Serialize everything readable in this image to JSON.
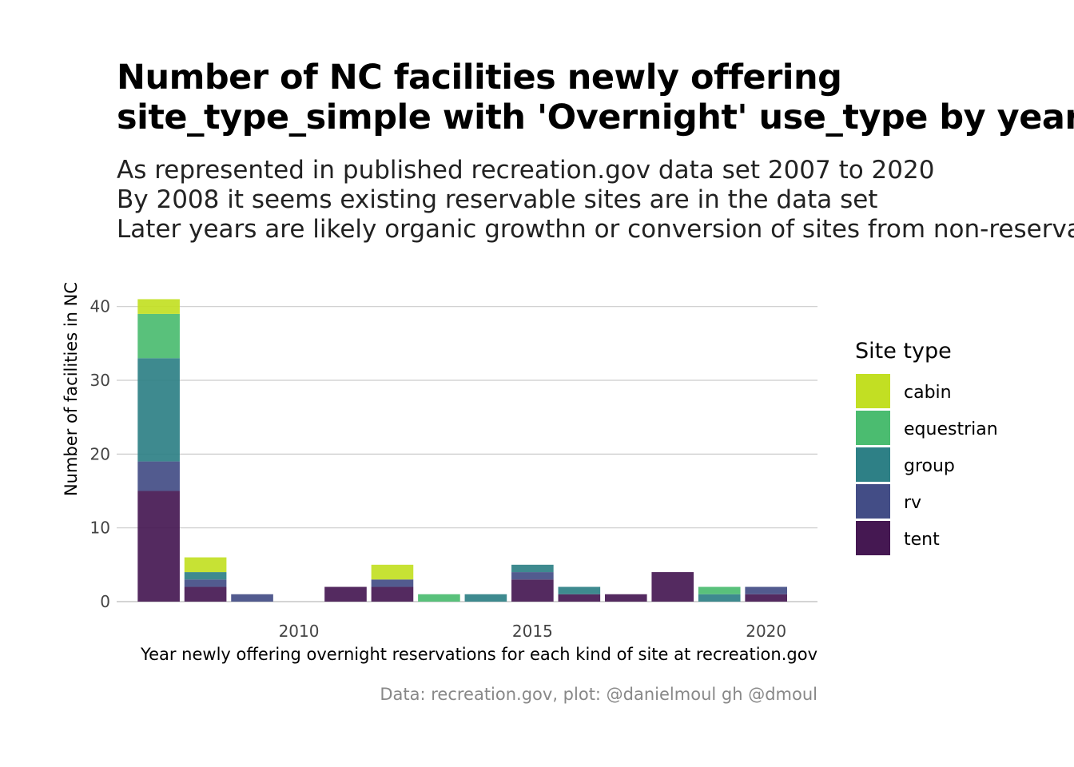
{
  "title_lines": [
    "Number of NC facilities newly offering",
    "site_type_simple with 'Overnight' use_type by year"
  ],
  "subtitle_lines": [
    "As represented in published recreation.gov data set 2007 to 2020",
    "By 2008 it seems existing reservable sites are in the data set",
    "Later years are likely organic growthn or conversion of sites from non-reservable"
  ],
  "caption": "Data: recreation.gov, plot: @danielmoul gh @dmoul",
  "colors": {
    "cabin": "#c2df23",
    "equestrian": "#4bbc70",
    "group": "#2e8086",
    "rv": "#434d86",
    "tent": "#451852",
    "grid": "#cccccc",
    "axis": "#bbbbbb"
  },
  "chart_data": {
    "type": "bar",
    "stacked": true,
    "x": [
      2007,
      2008,
      2009,
      2011,
      2012,
      2013,
      2014,
      2015,
      2016,
      2017,
      2018,
      2019,
      2020
    ],
    "series": [
      {
        "name": "tent",
        "values": [
          15,
          2,
          0,
          2,
          2,
          0,
          0,
          3,
          1,
          1,
          4,
          0,
          1
        ]
      },
      {
        "name": "rv",
        "values": [
          4,
          1,
          1,
          0,
          1,
          0,
          0,
          1,
          0,
          0,
          0,
          0,
          1
        ]
      },
      {
        "name": "group",
        "values": [
          14,
          1,
          0,
          0,
          0,
          0,
          1,
          1,
          1,
          0,
          0,
          1,
          0
        ]
      },
      {
        "name": "equestrian",
        "values": [
          6,
          0,
          0,
          0,
          0,
          1,
          0,
          0,
          0,
          0,
          0,
          1,
          0
        ]
      },
      {
        "name": "cabin",
        "values": [
          2,
          2,
          0,
          0,
          2,
          0,
          0,
          0,
          0,
          0,
          0,
          0,
          0
        ]
      }
    ],
    "stack_order_bottom_to_top": [
      "tent",
      "rv",
      "group",
      "equestrian",
      "cabin"
    ],
    "legend_order": [
      "cabin",
      "equestrian",
      "group",
      "rv",
      "tent"
    ],
    "xlabel": "Year newly offering overnight reservations for each kind of site at recreation.gov",
    "ylabel": "Number of facilities in NC",
    "xlim": [
      2006.1,
      2021.1
    ],
    "ylim": [
      0,
      43
    ],
    "xticks": [
      2010,
      2015,
      2020
    ],
    "yticks": [
      0,
      10,
      20,
      30,
      40
    ],
    "legend_title": "Site type",
    "legend_position": "right",
    "grid": "horizontal major"
  }
}
